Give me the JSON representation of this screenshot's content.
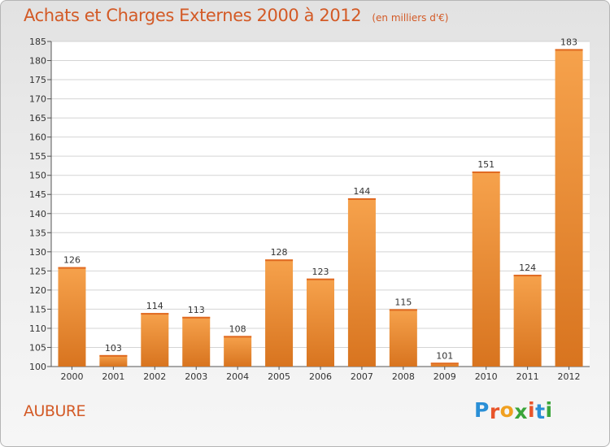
{
  "chart_data": {
    "type": "bar",
    "title": "Achats et Charges Externes 2000 à 2012",
    "unit": "(en milliers d'€)",
    "categories": [
      "2000",
      "2001",
      "2002",
      "2003",
      "2004",
      "2005",
      "2006",
      "2007",
      "2008",
      "2009",
      "2010",
      "2011",
      "2012"
    ],
    "values": [
      126,
      103,
      114,
      113,
      108,
      128,
      123,
      144,
      115,
      101,
      151,
      124,
      183
    ],
    "ylim": [
      100,
      185
    ],
    "yticks": [
      100,
      105,
      110,
      115,
      120,
      125,
      130,
      135,
      140,
      145,
      150,
      155,
      160,
      165,
      170,
      175,
      180,
      185
    ],
    "grid": true,
    "bar_color": "#f08a34"
  },
  "footer": {
    "commune": "AUBURE",
    "brand_letters": [
      "P",
      "r",
      "o",
      "x",
      "i",
      "t",
      "i"
    ],
    "brand_colors": [
      "#2a8fd6",
      "#e8552b",
      "#f0a020",
      "#3aa53a",
      "#e8552b",
      "#2a8fd6",
      "#3aa53a"
    ]
  }
}
